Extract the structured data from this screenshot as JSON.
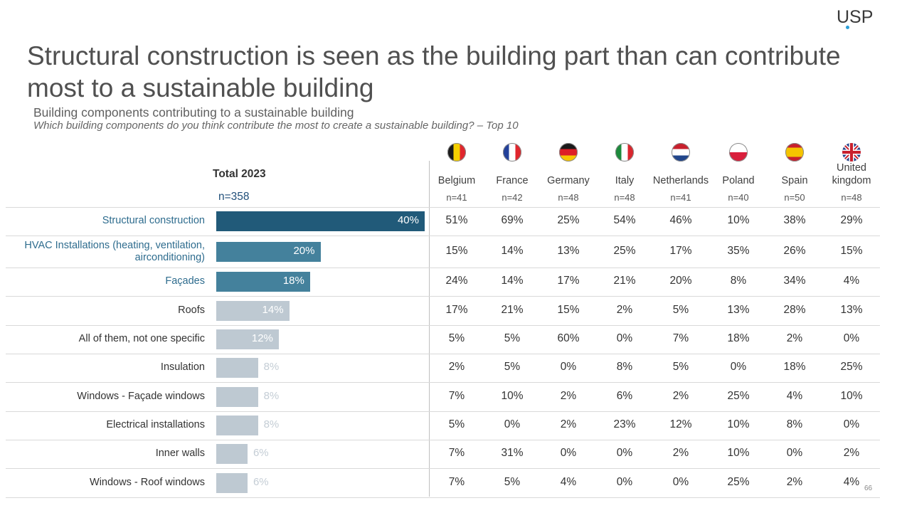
{
  "logo": "USP",
  "title": "Structural construction is seen as the building part than can contribute most to a sustainable building",
  "subtitle": "Building components contributing to a sustainable building",
  "question": "Which building components do you think contribute the most to create a sustainable building? – Top 10",
  "total": {
    "heading": "Total 2023",
    "n": "n=358"
  },
  "page_number": "66",
  "colors": {
    "dark": "#215a79",
    "mid": "#44819c",
    "light": "#bec9d2",
    "highlight_text": "#2e6c8e"
  },
  "columns": [
    {
      "name": "Belgium",
      "n": "n=41",
      "flag": "belgium-flag-icon"
    },
    {
      "name": "France",
      "n": "n=42",
      "flag": "france-flag-icon"
    },
    {
      "name": "Germany",
      "n": "n=48",
      "flag": "germany-flag-icon"
    },
    {
      "name": "Italy",
      "n": "n=48",
      "flag": "italy-flag-icon"
    },
    {
      "name": "Netherlands",
      "n": "n=41",
      "flag": "netherlands-flag-icon"
    },
    {
      "name": "Poland",
      "n": "n=40",
      "flag": "poland-flag-icon"
    },
    {
      "name": "Spain",
      "n": "n=50",
      "flag": "spain-flag-icon"
    },
    {
      "name": "United kingdom",
      "n": "n=48",
      "flag": "uk-flag-icon"
    }
  ],
  "chart_data": {
    "type": "bar",
    "orientation": "horizontal",
    "categories": [
      "Structural construction",
      "HVAC Installations (heating, ventilation, airconditioning)",
      "Façades",
      "Roofs",
      "All of them, not one specific",
      "Insulation",
      "Windows - Façade windows",
      "Electrical installations",
      "Inner walls",
      "Windows - Roof windows"
    ],
    "values": [
      40,
      20,
      18,
      14,
      12,
      8,
      8,
      8,
      6,
      6
    ],
    "value_labels": [
      "40%",
      "20%",
      "18%",
      "14%",
      "12%",
      "8%",
      "8%",
      "8%",
      "6%",
      "6%"
    ],
    "xlim": [
      0,
      40
    ],
    "table": [
      [
        "51%",
        "69%",
        "25%",
        "54%",
        "46%",
        "10%",
        "38%",
        "29%"
      ],
      [
        "15%",
        "14%",
        "13%",
        "25%",
        "17%",
        "35%",
        "26%",
        "15%"
      ],
      [
        "24%",
        "14%",
        "17%",
        "21%",
        "20%",
        "8%",
        "34%",
        "4%"
      ],
      [
        "17%",
        "21%",
        "15%",
        "2%",
        "5%",
        "13%",
        "28%",
        "13%"
      ],
      [
        "5%",
        "5%",
        "60%",
        "0%",
        "7%",
        "18%",
        "2%",
        "0%"
      ],
      [
        "2%",
        "5%",
        "0%",
        "8%",
        "5%",
        "0%",
        "18%",
        "25%"
      ],
      [
        "7%",
        "10%",
        "2%",
        "6%",
        "2%",
        "25%",
        "4%",
        "10%"
      ],
      [
        "5%",
        "0%",
        "2%",
        "23%",
        "12%",
        "10%",
        "8%",
        "0%"
      ],
      [
        "7%",
        "31%",
        "0%",
        "0%",
        "2%",
        "10%",
        "0%",
        "2%"
      ],
      [
        "7%",
        "5%",
        "4%",
        "0%",
        "0%",
        "25%",
        "2%",
        "4%"
      ]
    ]
  }
}
